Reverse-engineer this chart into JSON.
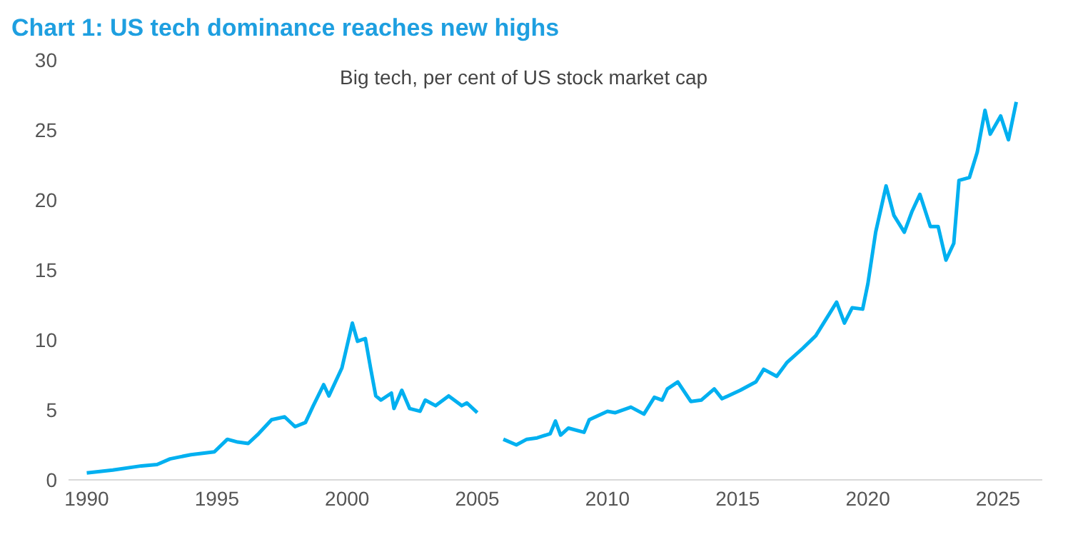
{
  "chart_data": {
    "type": "line",
    "title": "Chart 1: US tech dominance reaches new highs",
    "subtitle": "Big tech, per cent of US stock market cap",
    "x": [
      1990.0,
      1991.0,
      1992.1,
      1992.7,
      1993.2,
      1994.0,
      1994.9,
      1995.4,
      1995.8,
      1996.2,
      1996.6,
      1997.1,
      1997.6,
      1998.0,
      1998.4,
      1998.7,
      1999.1,
      1999.3,
      1999.8,
      2000.2,
      2000.4,
      2000.7,
      2000.9,
      2001.1,
      2001.3,
      2001.7,
      2001.8,
      2002.1,
      2002.4,
      2002.8,
      2003.0,
      2003.4,
      2003.9,
      2004.4,
      2004.6,
      2005.0,
      2005.5,
      2006.0,
      2006.5,
      2006.9,
      2007.3,
      2007.8,
      2008.0,
      2008.2,
      2008.5,
      2009.1,
      2009.3,
      2010.0,
      2010.3,
      2010.9,
      2011.4,
      2011.8,
      2012.1,
      2012.3,
      2012.7,
      2013.2,
      2013.6,
      2014.1,
      2014.4,
      2015.1,
      2015.7,
      2016.0,
      2016.5,
      2016.9,
      2017.5,
      2018.0,
      2018.6,
      2018.8,
      2019.1,
      2019.4,
      2019.8,
      2020.0,
      2020.3,
      2020.7,
      2021.0,
      2021.4,
      2021.7,
      2022.0,
      2022.4,
      2022.7,
      2023.0,
      2023.3,
      2023.5,
      2023.9,
      2024.2,
      2024.5,
      2024.7,
      2025.1,
      2025.4,
      2025.7
    ],
    "values": [
      0.5,
      0.7,
      1.0,
      1.1,
      1.5,
      1.8,
      2.0,
      2.9,
      2.7,
      2.6,
      3.3,
      4.3,
      4.5,
      3.8,
      4.1,
      5.3,
      6.8,
      6.0,
      8.0,
      11.2,
      9.9,
      10.1,
      8.0,
      6.0,
      5.7,
      6.2,
      5.1,
      6.4,
      5.1,
      4.9,
      5.7,
      5.3,
      6.0,
      5.3,
      5.5,
      4.8,
      null,
      2.9,
      2.5,
      2.9,
      3.0,
      3.3,
      4.2,
      3.2,
      3.7,
      3.4,
      4.3,
      4.9,
      4.8,
      5.2,
      4.7,
      5.9,
      5.7,
      6.5,
      7.0,
      5.6,
      5.7,
      6.5,
      5.8,
      6.4,
      7.0,
      7.9,
      7.4,
      8.4,
      9.4,
      10.3,
      12.1,
      12.7,
      11.2,
      12.3,
      12.2,
      14.0,
      17.7,
      21.0,
      18.9,
      17.7,
      19.2,
      20.4,
      18.1,
      18.1,
      15.7,
      16.9,
      21.4,
      21.6,
      23.4,
      26.4,
      24.7,
      26.0,
      24.3,
      27.0
    ],
    "color": "#00b0f0",
    "xlim": [
      1989.3,
      2026.7
    ],
    "xticks": [
      1990,
      1995,
      2000,
      2005,
      2010,
      2015,
      2020,
      2025
    ],
    "ylim": [
      0,
      30
    ],
    "yticks": [
      0,
      5,
      10,
      15,
      20,
      25,
      30
    ]
  }
}
